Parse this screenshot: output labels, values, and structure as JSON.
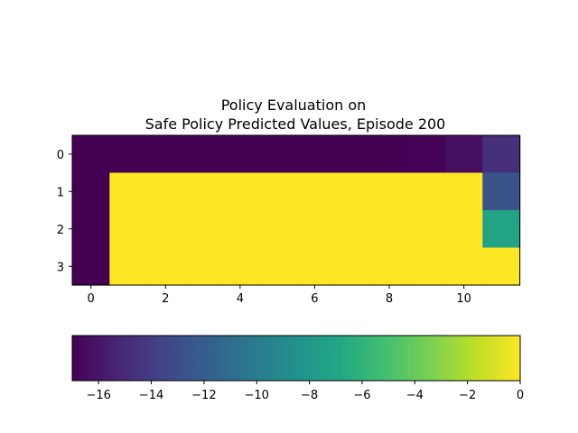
{
  "chart_data": [
    {
      "type": "heatmap",
      "title_line1": "Policy Evaluation on",
      "title_line2": "Safe Policy Predicted Values, Episode 200",
      "xlabel": "",
      "ylabel": "",
      "rows": 4,
      "cols": 12,
      "x_tick_values": [
        0,
        2,
        4,
        6,
        8,
        10
      ],
      "x_tick_labels": [
        "0",
        "2",
        "4",
        "6",
        "8",
        "10"
      ],
      "y_tick_values": [
        0,
        1,
        2,
        3
      ],
      "y_tick_labels": [
        "0",
        "1",
        "2",
        "3"
      ],
      "colormap": "viridis",
      "vmin": -17,
      "vmax": 0,
      "values": [
        [
          -17,
          -17,
          -17,
          -17,
          -17,
          -17,
          -17,
          -17,
          -17,
          -16.9,
          -16.3,
          -14.7
        ],
        [
          -17,
          0,
          0,
          0,
          0,
          0,
          0,
          0,
          0,
          0,
          0,
          -12.6
        ],
        [
          -17,
          0,
          0,
          0,
          0,
          0,
          0,
          0,
          0,
          0,
          0,
          -7.2
        ],
        [
          -17,
          0,
          0,
          0,
          0,
          0,
          0,
          0,
          0,
          0,
          0,
          0
        ]
      ],
      "grid": false,
      "legend": "none"
    },
    {
      "type": "colorbar",
      "orientation": "horizontal",
      "min": -17,
      "max": 0,
      "tick_values": [
        -16,
        -14,
        -12,
        -10,
        -8,
        -6,
        -4,
        -2,
        0
      ],
      "tick_labels": [
        "−16",
        "−14",
        "−12",
        "−10",
        "−8",
        "−6",
        "−4",
        "−2",
        "0"
      ]
    }
  ]
}
